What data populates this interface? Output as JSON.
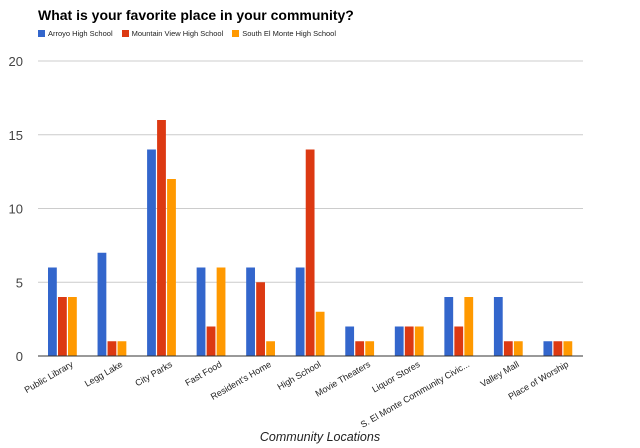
{
  "chart_data": {
    "type": "bar",
    "title": "What is your favorite place in your community?",
    "xlabel": "Community Locations",
    "ylabel": "",
    "ylim": [
      0,
      20
    ],
    "yticks": [
      "0",
      "5",
      "10",
      "15",
      "20"
    ],
    "grid": true,
    "legend_position": "top-left",
    "categories": [
      "Public Library",
      "Legg Lake",
      "City Parks",
      "Fast Food",
      "Resident's Home",
      "High School",
      "Movie Theaters",
      "Liquor Stores",
      "S. El Monte Community Civic...",
      "Valley Mall",
      "Place of Worship"
    ],
    "series": [
      {
        "name": "Arroyo High School",
        "color": "#3366cc",
        "values": [
          6,
          7,
          14,
          6,
          6,
          6,
          2,
          2,
          4,
          4,
          1
        ]
      },
      {
        "name": "Mountain View High School",
        "color": "#dc3912",
        "values": [
          4,
          1,
          16,
          2,
          5,
          14,
          1,
          2,
          2,
          1,
          1
        ]
      },
      {
        "name": "South El Monte High School",
        "color": "#ff9900",
        "values": [
          4,
          1,
          12,
          6,
          1,
          3,
          1,
          2,
          4,
          1,
          1
        ]
      }
    ]
  }
}
